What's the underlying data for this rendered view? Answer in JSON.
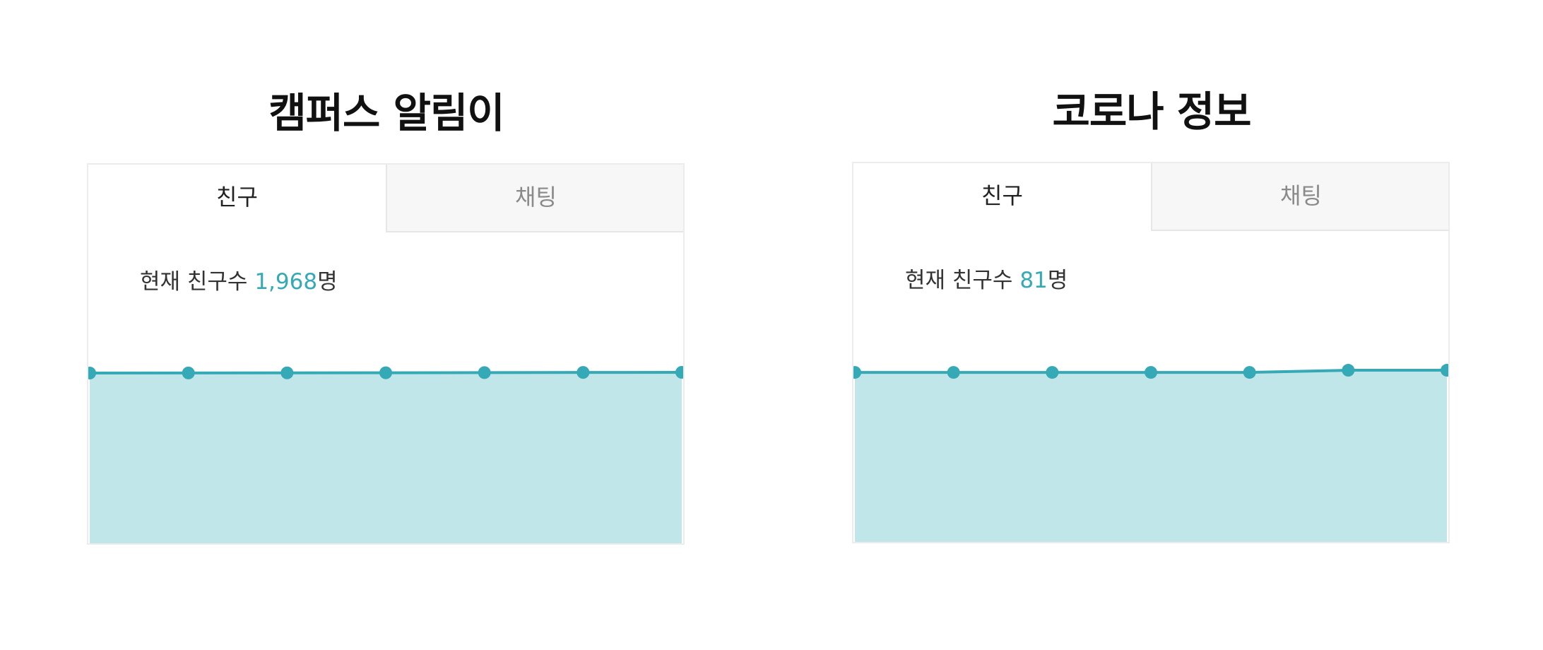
{
  "panels": [
    {
      "title": "캠퍼스 알림이",
      "tabs": {
        "friends": "친구",
        "chat": "채팅"
      },
      "friend_count": {
        "prefix": "현재 친구수 ",
        "count": "1,968",
        "suffix": "명"
      }
    },
    {
      "title": "코로나 정보",
      "tabs": {
        "friends": "친구",
        "chat": "채팅"
      },
      "friend_count": {
        "prefix": "현재 친구수 ",
        "count": "81",
        "suffix": "명"
      }
    }
  ],
  "chart_data": [
    {
      "type": "area",
      "title": "",
      "xlabel": "",
      "ylabel": "",
      "x": [
        1,
        2,
        3,
        4,
        5,
        6,
        7
      ],
      "values": [
        1960,
        1961,
        1962,
        1963,
        1965,
        1967,
        1968
      ],
      "ylim": [
        0,
        2000
      ],
      "grid": false,
      "colors": {
        "line": "#35a9b5",
        "fill": "#c1e6e9",
        "marker": "#35a9b5"
      }
    },
    {
      "type": "area",
      "title": "",
      "xlabel": "",
      "ylabel": "",
      "x": [
        1,
        2,
        3,
        4,
        5,
        6,
        7
      ],
      "values": [
        80,
        80,
        80,
        80,
        80,
        81,
        81
      ],
      "ylim": [
        0,
        82
      ],
      "grid": false,
      "colors": {
        "line": "#35a9b5",
        "fill": "#c1e6e9",
        "marker": "#35a9b5"
      }
    }
  ]
}
